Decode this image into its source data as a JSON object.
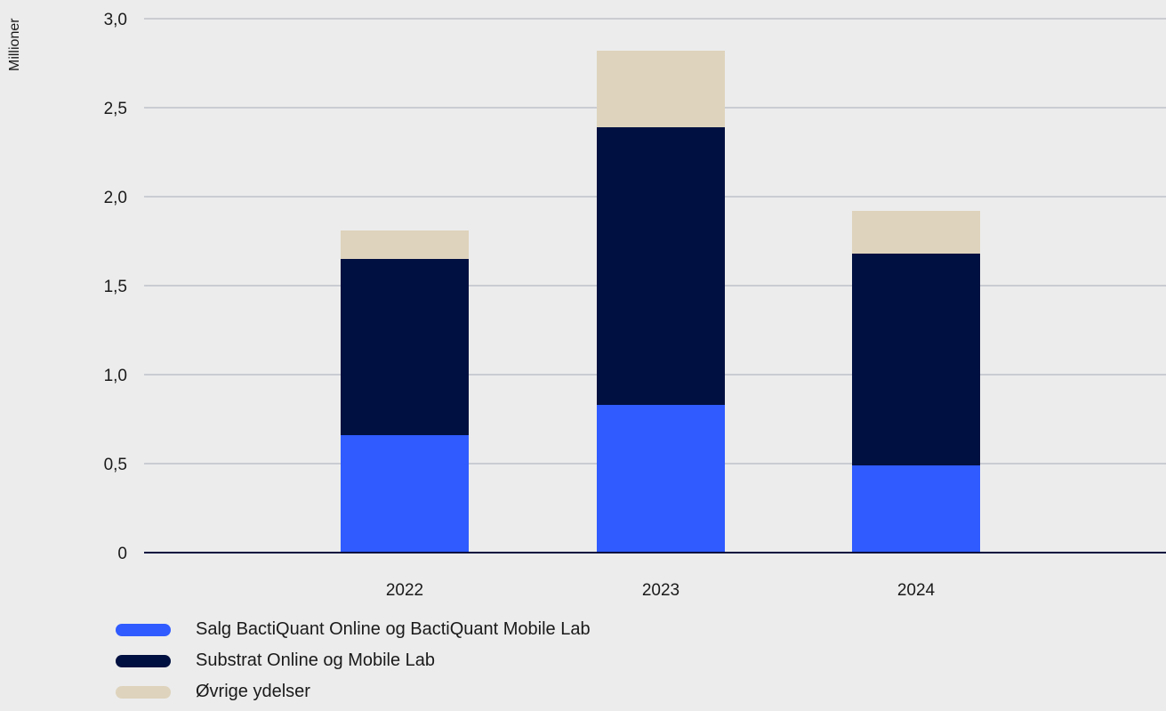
{
  "chart_data": {
    "type": "bar",
    "stacked": true,
    "ylabel": "Millioner",
    "ylim": [
      0,
      3.0
    ],
    "yticks": [
      "0",
      "0,5",
      "1,0",
      "1,5",
      "2,0",
      "2,5",
      "3,0"
    ],
    "categories": [
      "2022",
      "2023",
      "2024"
    ],
    "grid": true,
    "legend_position": "bottom-left",
    "series": [
      {
        "name": "Salg BactiQuant Online og BactiQuant Mobile Lab",
        "color": "#2f5bff",
        "values": [
          0.66,
          0.83,
          0.49
        ]
      },
      {
        "name": "Substrat Online og Mobile Lab",
        "color": "#001040",
        "values": [
          0.99,
          1.56,
          1.19
        ]
      },
      {
        "name": "Øvrige ydelser",
        "color": "#ded3bc",
        "values": [
          0.16,
          0.43,
          0.24
        ]
      }
    ]
  }
}
